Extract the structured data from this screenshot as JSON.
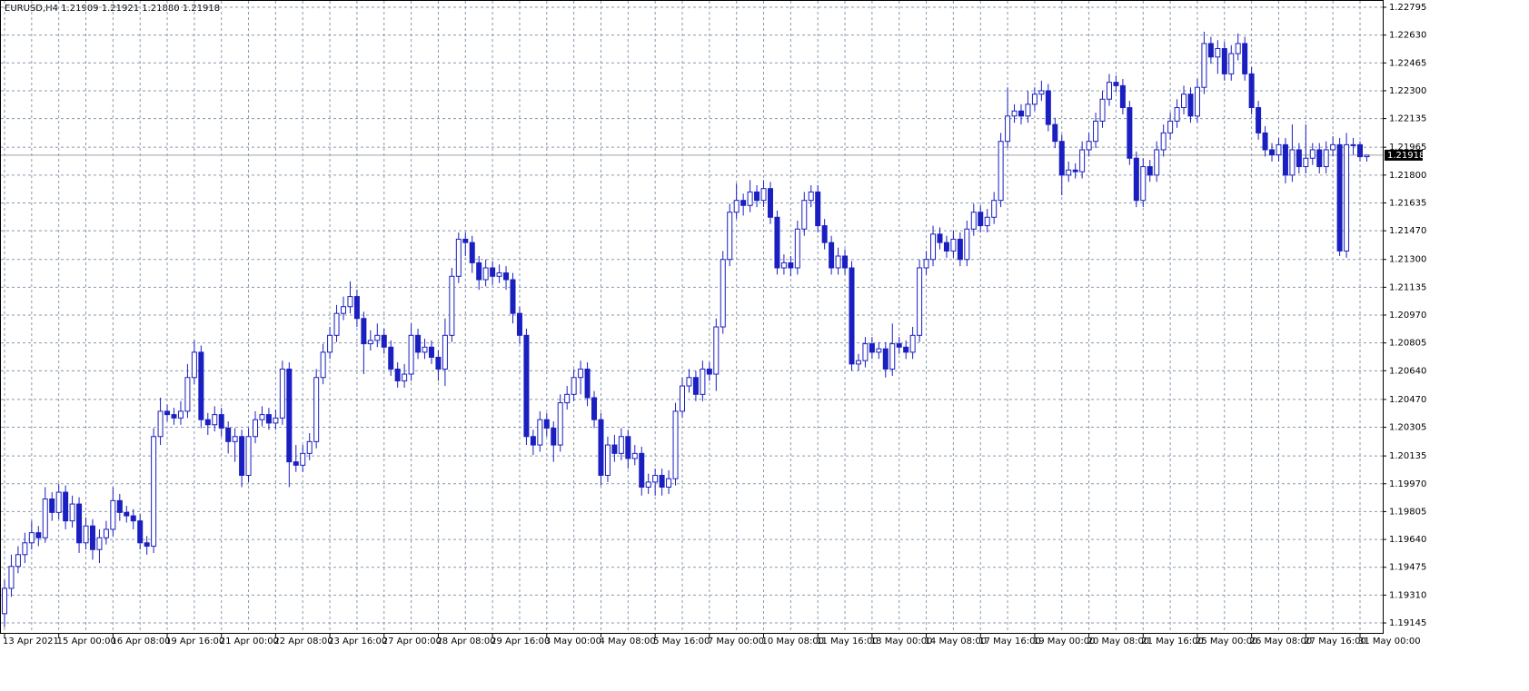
{
  "chart_data": {
    "type": "candlestick",
    "title": "EURUSD,H4  1.21909 1.21921 1.21880 1.21918",
    "categories": [
      "13 Apr 2021",
      null,
      null,
      null,
      null,
      null,
      null,
      null,
      "15 Apr 00:00",
      null,
      null,
      null,
      null,
      null,
      null,
      null,
      "16 Apr 08:00",
      null,
      null,
      null,
      null,
      null,
      null,
      null,
      "19 Apr 16:00",
      null,
      null,
      null,
      null,
      null,
      null,
      null,
      "21 Apr 00:00",
      null,
      null,
      null,
      null,
      null,
      null,
      null,
      "22 Apr 08:00",
      null,
      null,
      null,
      null,
      null,
      null,
      null,
      "23 Apr 16:00",
      null,
      null,
      null,
      null,
      null,
      null,
      null,
      "27 Apr 00:00",
      null,
      null,
      null,
      null,
      null,
      null,
      null,
      "28 Apr 08:00",
      null,
      null,
      null,
      null,
      null,
      null,
      null,
      "29 Apr 16:00",
      null,
      null,
      null,
      null,
      null,
      null,
      null,
      "3 May 00:00",
      null,
      null,
      null,
      null,
      null,
      null,
      null,
      "4 May 08:00",
      null,
      null,
      null,
      null,
      null,
      null,
      null,
      "5 May 16:00",
      null,
      null,
      null,
      null,
      null,
      null,
      null,
      "7 May 00:00",
      null,
      null,
      null,
      null,
      null,
      null,
      null,
      "10 May 08:00",
      null,
      null,
      null,
      null,
      null,
      null,
      null,
      "11 May 16:00",
      null,
      null,
      null,
      null,
      null,
      null,
      null,
      "13 May 00:00",
      null,
      null,
      null,
      null,
      null,
      null,
      null,
      "14 May 08:00",
      null,
      null,
      null,
      null,
      null,
      null,
      null,
      "17 May 16:00",
      null,
      null,
      null,
      null,
      null,
      null,
      null,
      "19 May 00:00",
      null,
      null,
      null,
      null,
      null,
      null,
      null,
      "20 May 08:00",
      null,
      null,
      null,
      null,
      null,
      null,
      null,
      "21 May 16:00",
      null,
      null,
      null,
      null,
      null,
      null,
      null,
      "25 May 00:00",
      null,
      null,
      null,
      null,
      null,
      null,
      null,
      "26 May 08:00",
      null,
      null,
      null,
      null,
      null,
      null,
      null,
      "27 May 16:00",
      null,
      null,
      null,
      null,
      null,
      null,
      null,
      "31 May 00:00",
      null
    ],
    "ohlc": [
      [
        1.192,
        1.194,
        1.1912,
        1.1935
      ],
      [
        1.1935,
        1.1955,
        1.193,
        1.1948
      ],
      [
        1.1948,
        1.196,
        1.1944,
        1.1955
      ],
      [
        1.1955,
        1.1968,
        1.195,
        1.1962
      ],
      [
        1.1962,
        1.1975,
        1.1958,
        1.1968
      ],
      [
        1.1968,
        1.1972,
        1.196,
        1.1965
      ],
      [
        1.1965,
        1.1995,
        1.1962,
        1.1988
      ],
      [
        1.1988,
        1.1992,
        1.1975,
        1.198
      ],
      [
        1.198,
        1.1997,
        1.1976,
        1.1992
      ],
      [
        1.1992,
        1.1996,
        1.197,
        1.1975
      ],
      [
        1.1975,
        1.199,
        1.1971,
        1.1985
      ],
      [
        1.1985,
        1.1989,
        1.1956,
        1.1962
      ],
      [
        1.1962,
        1.1977,
        1.1958,
        1.1972
      ],
      [
        1.1972,
        1.1976,
        1.1952,
        1.1958
      ],
      [
        1.1958,
        1.197,
        1.195,
        1.1965
      ],
      [
        1.1965,
        1.1975,
        1.1961,
        1.197
      ],
      [
        1.197,
        1.1995,
        1.1966,
        1.1987
      ],
      [
        1.1987,
        1.1991,
        1.1975,
        1.198
      ],
      [
        1.198,
        1.1984,
        1.1974,
        1.1978
      ],
      [
        1.1978,
        1.1982,
        1.197,
        1.1975
      ],
      [
        1.1975,
        1.1979,
        1.1958,
        1.1962
      ],
      [
        1.1962,
        1.1966,
        1.1955,
        1.196
      ],
      [
        1.196,
        1.203,
        1.1956,
        1.2025
      ],
      [
        1.2025,
        1.2048,
        1.202,
        1.204
      ],
      [
        1.204,
        1.2044,
        1.2034,
        1.2038
      ],
      [
        1.2038,
        1.2042,
        1.2032,
        1.2036
      ],
      [
        1.2036,
        1.2046,
        1.2032,
        1.204
      ],
      [
        1.204,
        1.2068,
        1.2036,
        1.206
      ],
      [
        1.206,
        1.2082,
        1.2056,
        1.2075
      ],
      [
        1.2075,
        1.2079,
        1.203,
        1.2035
      ],
      [
        1.2035,
        1.2039,
        1.2026,
        1.2032
      ],
      [
        1.2032,
        1.2043,
        1.2028,
        1.2038
      ],
      [
        1.2038,
        1.2042,
        1.2025,
        1.203
      ],
      [
        1.203,
        1.2034,
        1.2015,
        1.2022
      ],
      [
        1.2022,
        1.203,
        1.201,
        1.2025
      ],
      [
        1.2025,
        1.2029,
        1.1995,
        1.2002
      ],
      [
        1.2002,
        1.203,
        1.1998,
        1.2025
      ],
      [
        1.2025,
        1.204,
        1.2021,
        1.2035
      ],
      [
        1.2035,
        1.2043,
        1.2031,
        1.2038
      ],
      [
        1.2038,
        1.2042,
        1.2029,
        1.2033
      ],
      [
        1.2033,
        1.2041,
        1.2029,
        1.2036
      ],
      [
        1.2036,
        1.207,
        1.2032,
        1.2065
      ],
      [
        1.2065,
        1.2069,
        1.1995,
        1.201
      ],
      [
        1.201,
        1.202,
        1.2004,
        1.2008
      ],
      [
        1.2008,
        1.202,
        1.2004,
        1.2015
      ],
      [
        1.2015,
        1.2027,
        1.2011,
        1.2022
      ],
      [
        1.2022,
        1.2065,
        1.2018,
        1.206
      ],
      [
        1.206,
        1.208,
        1.2056,
        1.2075
      ],
      [
        1.2075,
        1.209,
        1.2071,
        1.2085
      ],
      [
        1.2085,
        1.2103,
        1.2081,
        1.2098
      ],
      [
        1.2098,
        1.2108,
        1.2094,
        1.2102
      ],
      [
        1.2102,
        1.2117,
        1.2098,
        1.2108
      ],
      [
        1.2108,
        1.2112,
        1.209,
        1.2095
      ],
      [
        1.2095,
        1.2099,
        1.2062,
        1.208
      ],
      [
        1.208,
        1.2088,
        1.2076,
        1.2082
      ],
      [
        1.2082,
        1.2092,
        1.2078,
        1.2085
      ],
      [
        1.2085,
        1.2089,
        1.2074,
        1.2078
      ],
      [
        1.2078,
        1.2082,
        1.2061,
        1.2065
      ],
      [
        1.2065,
        1.2069,
        1.2054,
        1.2058
      ],
      [
        1.2058,
        1.2068,
        1.2054,
        1.2062
      ],
      [
        1.2062,
        1.2092,
        1.2058,
        1.2085
      ],
      [
        1.2085,
        1.2089,
        1.2071,
        1.2075
      ],
      [
        1.2075,
        1.2083,
        1.2071,
        1.2078
      ],
      [
        1.2078,
        1.2082,
        1.2068,
        1.2072
      ],
      [
        1.2072,
        1.2076,
        1.2058,
        1.2065
      ],
      [
        1.2065,
        1.2095,
        1.2055,
        1.2085
      ],
      [
        1.2085,
        1.2125,
        1.2081,
        1.212
      ],
      [
        1.212,
        1.2146,
        1.2116,
        1.2142
      ],
      [
        1.2142,
        1.2146,
        1.2132,
        1.214
      ],
      [
        1.214,
        1.2144,
        1.2122,
        1.2128
      ],
      [
        1.2128,
        1.2132,
        1.2112,
        1.2118
      ],
      [
        1.2118,
        1.213,
        1.2114,
        1.2125
      ],
      [
        1.2125,
        1.2129,
        1.2115,
        1.212
      ],
      [
        1.212,
        1.2127,
        1.2116,
        1.2122
      ],
      [
        1.2122,
        1.2126,
        1.2112,
        1.2118
      ],
      [
        1.2118,
        1.2122,
        1.2092,
        1.2098
      ],
      [
        1.2098,
        1.2102,
        1.208,
        1.2085
      ],
      [
        1.2085,
        1.2089,
        1.202,
        1.2025
      ],
      [
        1.2025,
        1.2029,
        1.2014,
        1.202
      ],
      [
        1.202,
        1.204,
        1.2016,
        1.2035
      ],
      [
        1.2035,
        1.2039,
        1.2025,
        1.203
      ],
      [
        1.203,
        1.2034,
        1.201,
        1.202
      ],
      [
        1.202,
        1.205,
        1.2016,
        1.2045
      ],
      [
        1.2045,
        1.2055,
        1.2041,
        1.205
      ],
      [
        1.205,
        1.2065,
        1.2046,
        1.206
      ],
      [
        1.206,
        1.207,
        1.205,
        1.2065
      ],
      [
        1.2065,
        1.2069,
        1.2043,
        1.2048
      ],
      [
        1.2048,
        1.2052,
        1.203,
        1.2035
      ],
      [
        1.2035,
        1.2039,
        1.1996,
        1.2002
      ],
      [
        1.2002,
        1.2025,
        1.1998,
        1.202
      ],
      [
        1.202,
        1.2026,
        1.201,
        1.2015
      ],
      [
        1.2015,
        1.203,
        1.2011,
        1.2025
      ],
      [
        1.2025,
        1.2029,
        1.2006,
        1.2012
      ],
      [
        1.2012,
        1.202,
        1.2008,
        1.2015
      ],
      [
        1.2015,
        1.2019,
        1.199,
        1.1995
      ],
      [
        1.1995,
        1.2003,
        1.1991,
        1.1998
      ],
      [
        1.1998,
        1.2006,
        1.199,
        1.2002
      ],
      [
        1.2002,
        1.2006,
        1.199,
        1.1995
      ],
      [
        1.1995,
        1.2005,
        1.1991,
        1.2
      ],
      [
        1.2,
        1.2045,
        1.1996,
        1.204
      ],
      [
        1.204,
        1.206,
        1.2036,
        1.2055
      ],
      [
        1.2055,
        1.2065,
        1.2051,
        1.206
      ],
      [
        1.206,
        1.2064,
        1.2046,
        1.205
      ],
      [
        1.205,
        1.207,
        1.2046,
        1.2065
      ],
      [
        1.2065,
        1.2069,
        1.2058,
        1.2062
      ],
      [
        1.2062,
        1.2095,
        1.2052,
        1.209
      ],
      [
        1.209,
        1.2135,
        1.2086,
        1.213
      ],
      [
        1.213,
        1.2163,
        1.2126,
        1.2158
      ],
      [
        1.2158,
        1.2175,
        1.2154,
        1.2165
      ],
      [
        1.2165,
        1.2169,
        1.2156,
        1.2162
      ],
      [
        1.2162,
        1.2177,
        1.2158,
        1.217
      ],
      [
        1.217,
        1.2174,
        1.2161,
        1.2165
      ],
      [
        1.2165,
        1.2177,
        1.2161,
        1.2172
      ],
      [
        1.2172,
        1.2176,
        1.2151,
        1.2155
      ],
      [
        1.2155,
        1.2159,
        1.2121,
        1.2125
      ],
      [
        1.2125,
        1.2133,
        1.2121,
        1.2128
      ],
      [
        1.2128,
        1.2132,
        1.212,
        1.2125
      ],
      [
        1.2125,
        1.2153,
        1.2121,
        1.2148
      ],
      [
        1.2148,
        1.217,
        1.2144,
        1.2165
      ],
      [
        1.2165,
        1.2174,
        1.2161,
        1.217
      ],
      [
        1.217,
        1.2174,
        1.2146,
        1.215
      ],
      [
        1.215,
        1.2154,
        1.2136,
        1.214
      ],
      [
        1.214,
        1.2144,
        1.2121,
        1.2125
      ],
      [
        1.2125,
        1.2137,
        1.2121,
        1.2132
      ],
      [
        1.2132,
        1.2136,
        1.2121,
        1.2125
      ],
      [
        1.2125,
        1.2129,
        1.2064,
        1.2068
      ],
      [
        1.2068,
        1.2074,
        1.2064,
        1.207
      ],
      [
        1.207,
        1.2084,
        1.2066,
        1.208
      ],
      [
        1.208,
        1.2084,
        1.2071,
        1.2075
      ],
      [
        1.2075,
        1.2081,
        1.2071,
        1.2077
      ],
      [
        1.2077,
        1.2081,
        1.206,
        1.2065
      ],
      [
        1.2065,
        1.2092,
        1.2061,
        1.208
      ],
      [
        1.208,
        1.2084,
        1.2074,
        1.2078
      ],
      [
        1.2078,
        1.2082,
        1.2071,
        1.2075
      ],
      [
        1.2075,
        1.209,
        1.2071,
        1.2085
      ],
      [
        1.2085,
        1.213,
        1.2081,
        1.2125
      ],
      [
        1.2125,
        1.2135,
        1.2121,
        1.213
      ],
      [
        1.213,
        1.215,
        1.2126,
        1.2145
      ],
      [
        1.2145,
        1.2149,
        1.2136,
        1.214
      ],
      [
        1.214,
        1.2144,
        1.2131,
        1.2135
      ],
      [
        1.2135,
        1.2147,
        1.2131,
        1.2142
      ],
      [
        1.2142,
        1.2146,
        1.2126,
        1.213
      ],
      [
        1.213,
        1.2153,
        1.2126,
        1.2148
      ],
      [
        1.2148,
        1.2163,
        1.2144,
        1.2158
      ],
      [
        1.2158,
        1.2162,
        1.2146,
        1.215
      ],
      [
        1.215,
        1.216,
        1.2146,
        1.2155
      ],
      [
        1.2155,
        1.217,
        1.2151,
        1.2165
      ],
      [
        1.2165,
        1.2205,
        1.2161,
        1.22
      ],
      [
        1.22,
        1.2232,
        1.2196,
        1.2215
      ],
      [
        1.2215,
        1.2222,
        1.2211,
        1.2218
      ],
      [
        1.2218,
        1.2222,
        1.221,
        1.2215
      ],
      [
        1.2215,
        1.223,
        1.2211,
        1.2222
      ],
      [
        1.2222,
        1.2232,
        1.2218,
        1.2228
      ],
      [
        1.2228,
        1.2236,
        1.2224,
        1.223
      ],
      [
        1.223,
        1.2234,
        1.2206,
        1.221
      ],
      [
        1.221,
        1.2214,
        1.2196,
        1.22
      ],
      [
        1.22,
        1.2204,
        1.2168,
        1.218
      ],
      [
        1.218,
        1.2188,
        1.2176,
        1.2183
      ],
      [
        1.2183,
        1.2187,
        1.2178,
        1.2182
      ],
      [
        1.2182,
        1.22,
        1.2178,
        1.2195
      ],
      [
        1.2195,
        1.2205,
        1.2191,
        1.22
      ],
      [
        1.22,
        1.2217,
        1.2196,
        1.2212
      ],
      [
        1.2212,
        1.223,
        1.2208,
        1.2225
      ],
      [
        1.2225,
        1.224,
        1.2221,
        1.2235
      ],
      [
        1.2235,
        1.2239,
        1.2229,
        1.2233
      ],
      [
        1.2233,
        1.2237,
        1.2216,
        1.222
      ],
      [
        1.222,
        1.2224,
        1.2186,
        1.219
      ],
      [
        1.219,
        1.2194,
        1.2161,
        1.2165
      ],
      [
        1.2165,
        1.219,
        1.2161,
        1.2185
      ],
      [
        1.2185,
        1.2189,
        1.2176,
        1.218
      ],
      [
        1.218,
        1.22,
        1.2176,
        1.2195
      ],
      [
        1.2195,
        1.221,
        1.2191,
        1.2205
      ],
      [
        1.2205,
        1.2217,
        1.2201,
        1.2212
      ],
      [
        1.2212,
        1.2225,
        1.2208,
        1.222
      ],
      [
        1.222,
        1.2233,
        1.2216,
        1.2228
      ],
      [
        1.2228,
        1.2232,
        1.2211,
        1.2215
      ],
      [
        1.2215,
        1.2237,
        1.2211,
        1.2232
      ],
      [
        1.2232,
        1.2265,
        1.2228,
        1.2258
      ],
      [
        1.2258,
        1.2262,
        1.2246,
        1.225
      ],
      [
        1.225,
        1.226,
        1.224,
        1.2255
      ],
      [
        1.2255,
        1.2259,
        1.2236,
        1.224
      ],
      [
        1.224,
        1.2257,
        1.2236,
        1.2252
      ],
      [
        1.2252,
        1.2264,
        1.2248,
        1.2258
      ],
      [
        1.2258,
        1.2262,
        1.2236,
        1.224
      ],
      [
        1.224,
        1.2244,
        1.2216,
        1.222
      ],
      [
        1.222,
        1.2224,
        1.2201,
        1.2205
      ],
      [
        1.2205,
        1.2209,
        1.2191,
        1.2195
      ],
      [
        1.2195,
        1.2199,
        1.2188,
        1.2192
      ],
      [
        1.2192,
        1.2202,
        1.2188,
        1.2198
      ],
      [
        1.2198,
        1.2202,
        1.2175,
        1.218
      ],
      [
        1.218,
        1.221,
        1.2176,
        1.2195
      ],
      [
        1.2195,
        1.2199,
        1.2181,
        1.2185
      ],
      [
        1.2185,
        1.221,
        1.2181,
        1.219
      ],
      [
        1.219,
        1.2199,
        1.2186,
        1.2195
      ],
      [
        1.2195,
        1.2199,
        1.2181,
        1.2185
      ],
      [
        1.2185,
        1.22,
        1.2181,
        1.2195
      ],
      [
        1.2195,
        1.2203,
        1.2191,
        1.2198
      ],
      [
        1.2198,
        1.2202,
        1.2132,
        1.2135
      ],
      [
        1.2135,
        1.2205,
        1.2131,
        1.2198
      ],
      [
        1.2198,
        1.2202,
        1.2192,
        1.2198
      ],
      [
        1.2198,
        1.22,
        1.2188,
        1.21909
      ],
      [
        1.21909,
        1.21921,
        1.2188,
        1.21918
      ]
    ],
    "ylim": [
      1.19086,
      1.22838
    ],
    "yticks": [
      1.19145,
      {
        "value": 1.1931,
        "label": "1.19310"
      },
      1.19475,
      {
        "value": 1.1964,
        "label": "1.19640"
      },
      1.19805,
      {
        "value": 1.1997,
        "label": "1.19970"
      },
      1.20135,
      1.20305,
      {
        "value": 1.2047,
        "label": "1.20470"
      },
      {
        "value": 1.2064,
        "label": "1.20640"
      },
      1.20805,
      {
        "value": 1.2097,
        "label": "1.20970"
      },
      1.21135,
      {
        "value": 1.213,
        "label": "1.21300"
      },
      {
        "value": 1.2147,
        "label": "1.21470"
      },
      1.21635,
      {
        "value": 1.218,
        "label": "1.21800"
      },
      1.21965,
      1.22135,
      {
        "value": 1.223,
        "label": "1.22300"
      },
      1.22465,
      {
        "value": 1.2263,
        "label": "1.22630"
      },
      1.22795
    ],
    "grid": true,
    "bull_color": "#ffffff",
    "bear_color": "#1a1fc0",
    "outline_color": "#1a1fc0",
    "last": 1.21918
  }
}
